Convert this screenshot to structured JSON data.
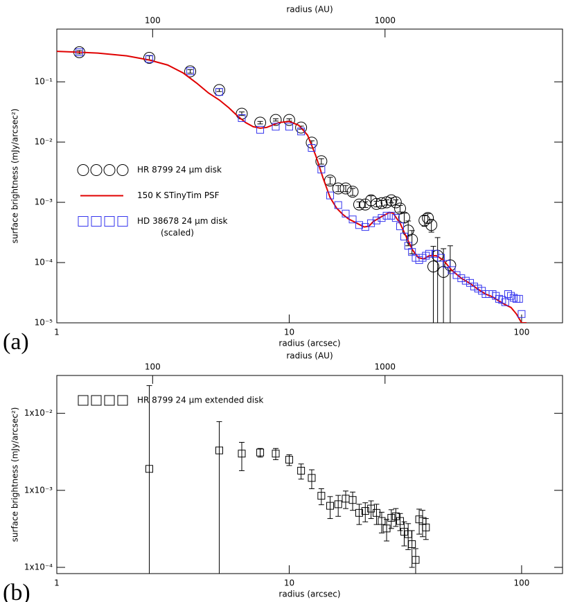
{
  "chart_data": [
    {
      "type": "scatter",
      "panel_label": "(a)",
      "xlabel": "radius (arcsec)",
      "x2label": "radius (AU)",
      "ylabel": "surface brightness (mJy/arcsec²)",
      "xscale": "log",
      "yscale": "log",
      "xlim": [
        1,
        150
      ],
      "xticks": [
        1,
        10,
        100
      ],
      "x2lim": [
        38.7,
        5805
      ],
      "x2ticks": [
        100,
        1000
      ],
      "ylim": [
        1e-05,
        0.75
      ],
      "yticks": [
        {
          "value": 0.1,
          "label": "10⁻¹"
        },
        {
          "value": 0.01,
          "label": "10⁻²"
        },
        {
          "value": 0.001,
          "label": "10⁻³"
        },
        {
          "value": 0.0001,
          "label": "10⁻⁴"
        },
        {
          "value": 1e-05,
          "label": "10⁻⁵"
        }
      ],
      "legend": "center left",
      "series": [
        {
          "name": "HR 8799 24 μm disk",
          "style": "circle",
          "color": "#000000",
          "x": [
            1.25,
            2.5,
            3.75,
            5,
            6.25,
            7.5,
            8.75,
            10,
            11.25,
            12.5,
            13.75,
            15,
            16.25,
            17.5,
            18.75,
            20,
            21.25,
            22.5,
            23.75,
            25,
            26.25,
            27.5,
            28.75,
            30,
            31.25,
            32.5,
            33.75,
            38.2,
            39.5,
            40.9,
            41.7,
            43.5,
            46.1,
            49.3
          ],
          "values": [
            0.31,
            0.25,
            0.149,
            0.073,
            0.0296,
            0.021,
            0.0233,
            0.0233,
            0.0174,
            0.0098,
            0.0048,
            0.0023,
            0.0017,
            0.0017,
            0.0015,
            0.00092,
            0.00092,
            0.00108,
            0.00094,
            0.00097,
            0.001,
            0.00108,
            0.001,
            0.00079,
            0.00056,
            0.00034,
            0.00024,
            0.0005,
            0.00055,
            0.00042,
            8.6e-05,
            0.00013,
            7e-05,
            9e-05
          ],
          "errors": [
            0.02,
            0.02,
            0.01,
            0.004,
            0.002,
            0.001,
            0.001,
            0.001,
            0.001,
            0.0007,
            0.0005,
            0.0003,
            0.0002,
            0.0002,
            0.0002,
            0.0001,
            0.0001,
            0.0002,
            0.0001,
            0.0001,
            0.0001,
            0.0001,
            0.0001,
            0.0001,
            0.0001,
            0.00015,
            0.0001,
            0.0001,
            0.0001,
            0.0001,
            0.0001,
            0.00013,
            0.0001,
            0.0001
          ]
        },
        {
          "name": "150 K STinyTim PSF",
          "style": "line",
          "color": "#e00000",
          "x": [
            1,
            1.25,
            1.5,
            2,
            2.5,
            3,
            3.5,
            4,
            4.5,
            5,
            5.5,
            6,
            6.5,
            7,
            7.5,
            8,
            9,
            10,
            11,
            12,
            13,
            14,
            15,
            16,
            17,
            18,
            20,
            21,
            22,
            23,
            25,
            27,
            28,
            30,
            32,
            34,
            36,
            38,
            40,
            43,
            46,
            50,
            55,
            60,
            65,
            70,
            75,
            80,
            85,
            90,
            95,
            100,
            105
          ],
          "values": [
            0.32,
            0.31,
            0.3,
            0.27,
            0.23,
            0.19,
            0.14,
            0.095,
            0.065,
            0.05,
            0.037,
            0.027,
            0.021,
            0.018,
            0.017,
            0.0175,
            0.021,
            0.022,
            0.019,
            0.013,
            0.006,
            0.0025,
            0.0012,
            0.0008,
            0.00063,
            0.00053,
            0.00043,
            0.00039,
            0.0004,
            0.00048,
            0.00058,
            0.00068,
            0.00066,
            0.00045,
            0.00026,
            0.00016,
            0.00012,
            0.000115,
            0.00013,
            0.00013,
            0.00011,
            7.5e-05,
            5.5e-05,
            4.5e-05,
            3.6e-05,
            3e-05,
            2.7e-05,
            2.3e-05,
            2e-05,
            1.8e-05,
            1.4e-05,
            1e-05,
            1e-05
          ]
        },
        {
          "name": "HD 38678 24 μm disk",
          "legend_note": "(scaled)",
          "style": "square",
          "color": "#3333ee",
          "x": [
            1.25,
            2.5,
            3.75,
            5,
            6.25,
            7.5,
            8.75,
            10,
            11.25,
            12.5,
            13.75,
            15,
            16.25,
            17.5,
            18.75,
            20,
            21.25,
            22.5,
            23.75,
            25,
            26.25,
            27.5,
            28.75,
            30,
            31.25,
            32.5,
            33.75,
            35,
            36.25,
            37.5,
            38.75,
            40,
            42.5,
            45,
            47.5,
            50,
            52.5,
            55,
            57.5,
            60,
            62.5,
            65,
            67.5,
            70,
            72.5,
            75,
            77.5,
            80,
            82.5,
            85,
            87.5,
            90,
            92.5,
            95,
            97.5,
            100
          ],
          "values": [
            0.31,
            0.24,
            0.15,
            0.068,
            0.025,
            0.016,
            0.018,
            0.018,
            0.015,
            0.008,
            0.0035,
            0.0013,
            0.0009,
            0.00065,
            0.00052,
            0.00042,
            0.00039,
            0.00045,
            0.0005,
            0.00055,
            0.0006,
            0.0006,
            0.00055,
            0.0004,
            0.00027,
            0.00019,
            0.00015,
            0.00012,
            0.00011,
            0.00012,
            0.00013,
            0.00014,
            0.00014,
            0.00012,
            9.5e-05,
            7.5e-05,
            6.2e-05,
            5.5e-05,
            5e-05,
            4.6e-05,
            4e-05,
            3.7e-05,
            3.4e-05,
            3e-05,
            3e-05,
            3e-05,
            2.8e-05,
            2.5e-05,
            2.4e-05,
            2.2e-05,
            3e-05,
            2.8e-05,
            2.6e-05,
            2.5e-05,
            2.5e-05,
            1.4e-05
          ]
        }
      ]
    },
    {
      "type": "scatter",
      "panel_label": "(b)",
      "xlabel": "radius (arcsec)",
      "x2label": "radius (AU)",
      "ylabel": "surface brightness (mJy/arcsec²)",
      "xscale": "log",
      "yscale": "log",
      "xlim": [
        1,
        150
      ],
      "xticks": [
        1,
        10,
        100
      ],
      "x2lim": [
        38.7,
        5805
      ],
      "x2ticks": [
        100,
        1000
      ],
      "ylim": [
        8.3e-05,
        0.031
      ],
      "yticks": [
        {
          "value": 0.01,
          "label": "1x10⁻²"
        },
        {
          "value": 0.001,
          "label": "1x10⁻³"
        },
        {
          "value": 0.0001,
          "label": "1x10⁻⁴"
        }
      ],
      "legend": "upper left",
      "series": [
        {
          "name": "HR 8799 24 μm extended disk",
          "style": "square",
          "color": "#000000",
          "x": [
            2.5,
            5,
            6.25,
            7.5,
            8.75,
            10,
            11.25,
            12.5,
            13.75,
            15,
            16.25,
            17.5,
            18.75,
            20,
            21.25,
            22.5,
            23.75,
            25,
            26.25,
            27.5,
            28.75,
            30,
            31.25,
            32.5,
            33.75,
            35,
            36.25,
            37.5,
            38.75
          ],
          "values": [
            0.0019,
            0.0033,
            0.003,
            0.0031,
            0.003,
            0.0025,
            0.0018,
            0.00145,
            0.00085,
            0.00063,
            0.00066,
            0.00078,
            0.00075,
            0.00051,
            0.00054,
            0.00058,
            0.00051,
            0.0004,
            0.00032,
            0.00044,
            0.00046,
            0.0004,
            0.00029,
            0.00027,
            0.0002,
            0.000125,
            0.00042,
            0.0004,
            0.00033
          ],
          "errors": [
            0.021,
            0.0045,
            0.0012,
            0.0004,
            0.0005,
            0.0004,
            0.0004,
            0.0004,
            0.0002,
            0.0002,
            0.0002,
            0.0002,
            0.0002,
            0.00015,
            0.00015,
            0.00015,
            0.00015,
            0.00012,
            0.0001,
            0.00012,
            0.00012,
            0.0001,
            0.0001,
            0.0001,
            0.0001,
            5e-05,
            0.00015,
            0.00015,
            0.0001
          ]
        }
      ]
    }
  ]
}
